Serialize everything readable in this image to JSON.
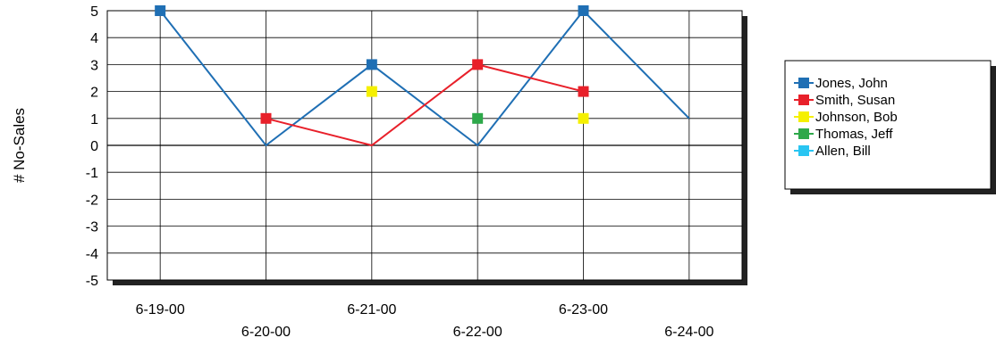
{
  "chart_data": {
    "type": "line",
    "title": "",
    "xlabel": "",
    "ylabel": "# No-Sales",
    "ylim": [
      -5,
      5
    ],
    "yticks": [
      5,
      4,
      3,
      2,
      1,
      0,
      -1,
      -2,
      -3,
      -4,
      -5
    ],
    "categories": [
      "6-19-00",
      "6-20-00",
      "6-21-00",
      "6-22-00",
      "6-23-00",
      "6-24-00"
    ],
    "grid": true,
    "legend_position": "right",
    "series": [
      {
        "name": "Jones, John",
        "color": "#1f6fb4",
        "values": [
          5,
          0,
          3,
          0,
          5,
          1
        ],
        "markers": [
          true,
          false,
          true,
          false,
          true,
          false
        ]
      },
      {
        "name": "Smith, Susan",
        "color": "#e8202a",
        "values": [
          null,
          1,
          0,
          3,
          2,
          null
        ],
        "markers": [
          false,
          true,
          false,
          true,
          true,
          false
        ]
      },
      {
        "name": "Johnson, Bob",
        "color": "#f5f000",
        "values": [
          null,
          null,
          2,
          null,
          1,
          null
        ],
        "markers": [
          false,
          false,
          true,
          false,
          true,
          false
        ]
      },
      {
        "name": "Thomas, Jeff",
        "color": "#2ea84a",
        "values": [
          null,
          null,
          null,
          1,
          null,
          null
        ],
        "markers": [
          false,
          false,
          false,
          true,
          false,
          false
        ]
      },
      {
        "name": "Allen, Bill",
        "color": "#29c5f2",
        "values": [
          null,
          null,
          null,
          null,
          null,
          null
        ],
        "markers": [
          false,
          false,
          false,
          false,
          false,
          false
        ]
      }
    ]
  }
}
